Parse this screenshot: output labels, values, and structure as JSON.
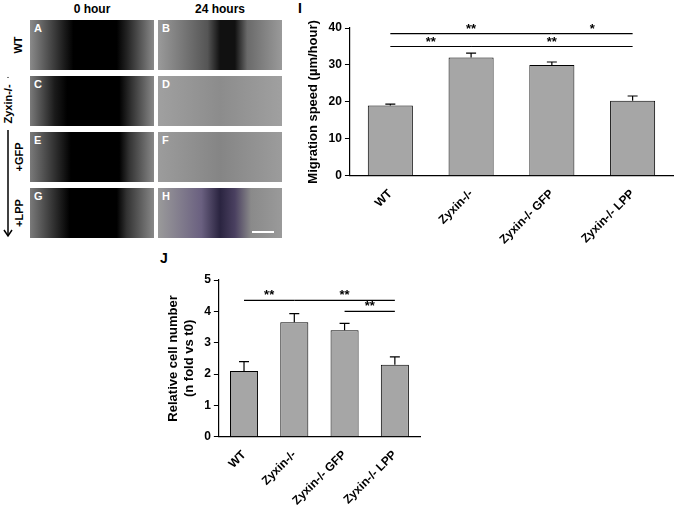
{
  "micrographs": {
    "columns": [
      "0 hour",
      "24 hours"
    ],
    "panels": [
      [
        "A",
        "B"
      ],
      [
        "C",
        "D"
      ],
      [
        "E",
        "F"
      ],
      [
        "G",
        "H"
      ]
    ],
    "wt_label": "WT",
    "ko_label": "Zyxin-/-",
    "treatment_labels": [
      "+GFP",
      "+LPP"
    ]
  },
  "chart_data": [
    {
      "panel": "I",
      "type": "bar",
      "y_label": "Migration speed (µm/hour)",
      "categories": [
        "WT",
        "Zyxin-/-",
        "Zyxin-/- GFP",
        "Zyxin-/- LPP"
      ],
      "values": [
        19,
        32,
        30,
        20.3
      ],
      "errors": [
        0.4,
        1.2,
        0.8,
        1.3
      ],
      "color": "#a6a6a6",
      "ylim": [
        0,
        40
      ],
      "yticks": [
        0,
        10,
        20,
        30,
        40
      ],
      "grid": false,
      "significance": [
        {
          "from": "WT",
          "to": "Zyxin-/-",
          "label": "**",
          "y": 35
        },
        {
          "from": "Zyxin-/-",
          "to": "Zyxin-/- LPP",
          "label": "**",
          "y": 35
        },
        {
          "from": "WT",
          "to": "Zyxin-/- GFP",
          "label": "**",
          "y": 38.5
        },
        {
          "from": "Zyxin-/- GFP",
          "to": "Zyxin-/- LPP",
          "label": "*",
          "y": 38.5
        }
      ]
    },
    {
      "panel": "J",
      "type": "bar",
      "y_label": [
        "Relative cell number",
        "(n fold vs t0)"
      ],
      "categories": [
        "WT",
        "Zyxin-/-",
        "Zyxin-/- GFP",
        "Zyxin-/- LPP"
      ],
      "values": [
        2.1,
        3.65,
        3.4,
        2.3
      ],
      "errors": [
        0.3,
        0.28,
        0.22,
        0.25
      ],
      "color": "#a6a6a6",
      "ylim": [
        0,
        5
      ],
      "yticks": [
        0,
        1,
        2,
        3,
        4,
        5
      ],
      "grid": false,
      "significance": [
        {
          "from": "WT",
          "to": "Zyxin-/-",
          "label": "**",
          "y": 4.35
        },
        {
          "from": "Zyxin-/-",
          "to": "Zyxin-/- LPP",
          "label": "**",
          "y": 4.35
        },
        {
          "from": "Zyxin-/- GFP",
          "to": "Zyxin-/- LPP",
          "label": "**",
          "y": 4.0
        }
      ]
    }
  ]
}
